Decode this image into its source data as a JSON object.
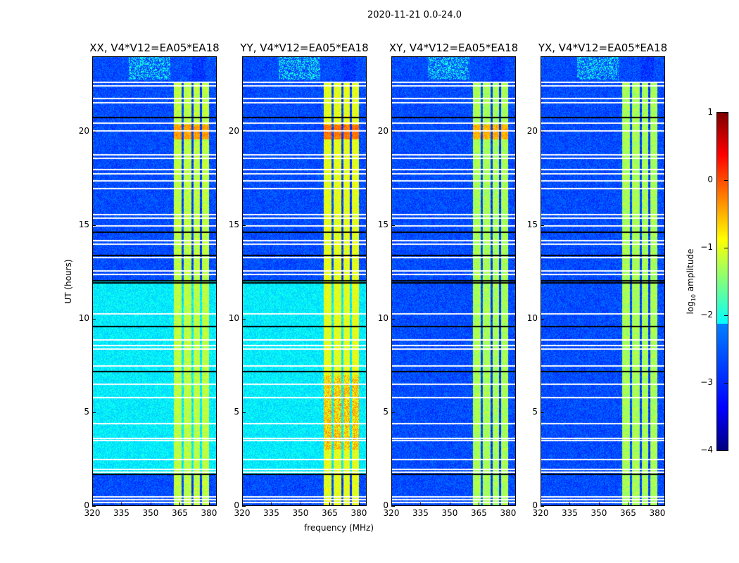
{
  "chart_data": {
    "type": "heatmap",
    "title": "2020-11-21 0.0-24.0",
    "xlabel": "frequency (MHz)",
    "ylabel": "UT (hours)",
    "xlim": [
      320,
      384
    ],
    "ylim": [
      0,
      24
    ],
    "xticks": [
      320,
      335,
      350,
      365,
      380
    ],
    "yticks": [
      0,
      5,
      10,
      15,
      20
    ],
    "colormap": "jet",
    "colorbar": {
      "label_prefix": "log",
      "label_sub": "10",
      "label_suffix": " amplitude",
      "range": [
        -4,
        1
      ],
      "ticks": [
        1,
        0,
        -1,
        -2,
        -3,
        -4
      ],
      "tick_labels": [
        "1",
        "0",
        "−1",
        "−2",
        "−3",
        "−4"
      ]
    },
    "panels": [
      {
        "title": "XX, V4*V12=EA05*EA18",
        "bg_mid": -2.2,
        "rfi": -1.2
      },
      {
        "title": "YY, V4*V12=EA05*EA18",
        "bg_mid": -2.2,
        "rfi": -1.0
      },
      {
        "title": "XY, V4*V12=EA05*EA18",
        "bg_mid": -3.0,
        "rfi": -1.3
      },
      {
        "title": "YX, V4*V12=EA05*EA18",
        "bg_mid": -3.0,
        "rfi": -1.3
      }
    ],
    "background_levels": [
      {
        "from": 0,
        "to": 1.7,
        "value": -3.0
      },
      {
        "from": 1.7,
        "to": 12.0,
        "value": "bg_mid"
      },
      {
        "from": 12.0,
        "to": 24,
        "value": -3.0
      }
    ],
    "rfi_bands_mhz": [
      [
        362,
        366
      ],
      [
        367,
        371
      ],
      [
        372,
        375.5
      ],
      [
        376.5,
        380
      ]
    ],
    "flagged_times_white": [
      0.2,
      0.35,
      0.5,
      1.8,
      1.95,
      2.5,
      3.5,
      3.6,
      4.4,
      5.8,
      6.5,
      7.5,
      8.4,
      8.6,
      8.9,
      10.3,
      12.4,
      12.6,
      13.3,
      14.0,
      14.2,
      15.0,
      15.4,
      15.6,
      17.0,
      17.4,
      17.8,
      18.0,
      18.6,
      18.8,
      20.1,
      20.5,
      21.6,
      21.8,
      22.5,
      22.7
    ],
    "flagged_times_black": [
      1.7,
      7.2,
      9.6,
      11.95,
      12.05,
      13.4,
      14.65,
      20.8
    ]
  }
}
